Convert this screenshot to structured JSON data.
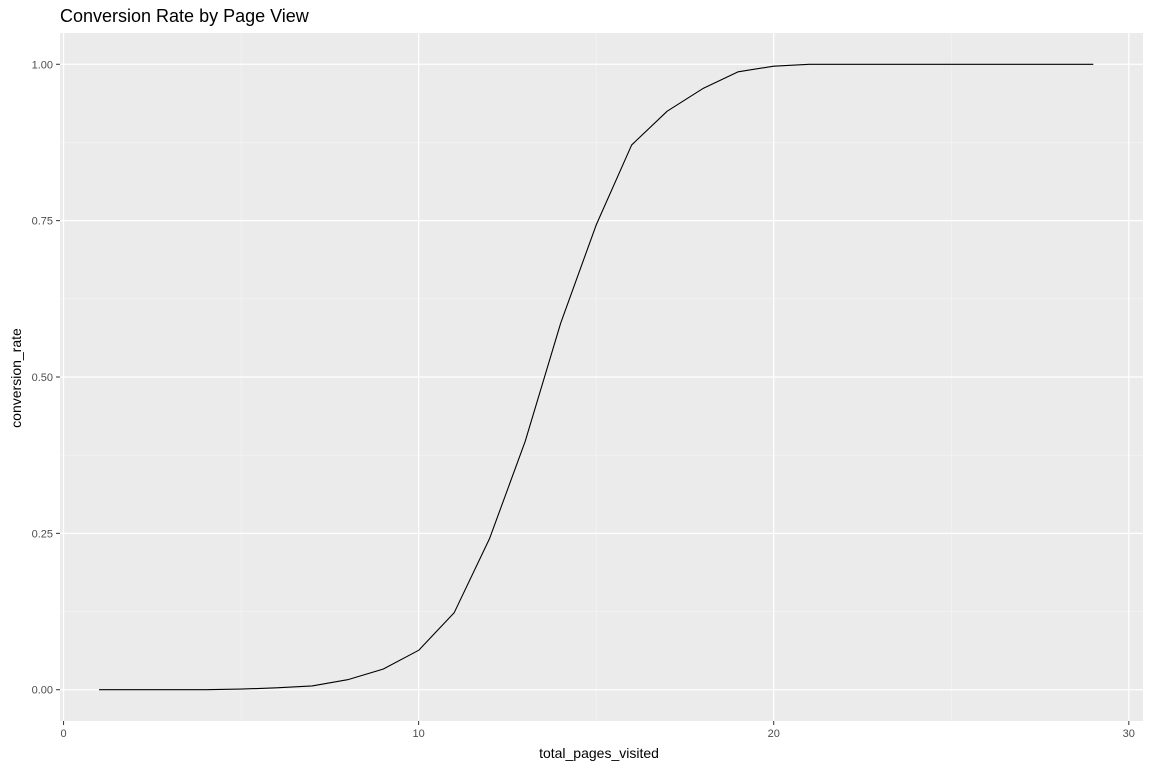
{
  "chart_data": {
    "type": "line",
    "title": "Conversion Rate by Page View",
    "xlabel": "total_pages_visited",
    "ylabel": "conversion_rate",
    "xlim": [
      -0.1,
      30.4
    ],
    "ylim": [
      -0.05,
      1.05
    ],
    "x_ticks": [
      0,
      10,
      20,
      30
    ],
    "x_tick_labels": [
      "0",
      "10",
      "20",
      "30"
    ],
    "x_minor_ticks": [
      5,
      15,
      25
    ],
    "y_ticks": [
      0,
      0.25,
      0.5,
      0.75,
      1
    ],
    "y_tick_labels": [
      "0.00",
      "0.25",
      "0.50",
      "0.75",
      "1.00"
    ],
    "y_minor_ticks": [
      0.125,
      0.375,
      0.625,
      0.875
    ],
    "grid": true,
    "legend": "none",
    "colors": {
      "panel_background": "#EBEBEB",
      "grid_major": "#FFFFFF",
      "grid_minor": "#F5F5F5",
      "line": "#000000",
      "tick_mark": "#333333"
    },
    "series": [
      {
        "x": [
          1,
          2,
          3,
          4,
          5,
          6,
          7,
          8,
          9,
          10,
          11,
          12,
          13,
          14,
          15,
          16,
          17,
          18,
          19,
          20,
          21,
          22,
          23,
          24,
          25,
          26,
          27,
          28,
          29
        ],
        "values": [
          0.0,
          0.0,
          0.0,
          0.0,
          0.001,
          0.003,
          0.006,
          0.016,
          0.033,
          0.063,
          0.123,
          0.242,
          0.397,
          0.586,
          0.743,
          0.871,
          0.925,
          0.961,
          0.988,
          0.997,
          1.0,
          1.0,
          1.0,
          1.0,
          1.0,
          1.0,
          1.0,
          1.0,
          1.0
        ]
      }
    ]
  }
}
